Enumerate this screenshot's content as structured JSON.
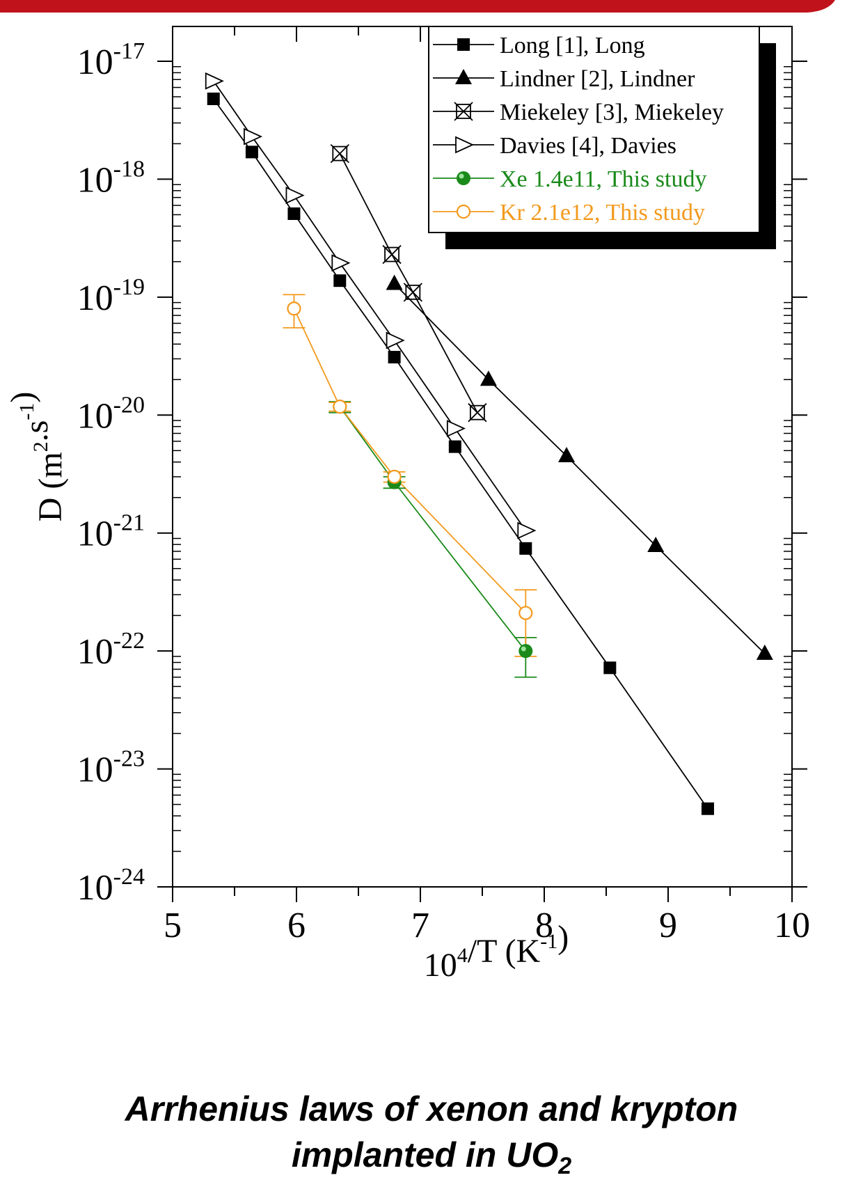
{
  "colors": {
    "banner": "#c0121b",
    "black": "#000000",
    "green": "#1a8a1a",
    "orange": "#f39a1e"
  },
  "caption": {
    "line1": "Arrhenius laws of xenon and krypton",
    "line2_prefix": "implanted in UO",
    "line2_sub": "2"
  },
  "chart_data": {
    "type": "scatter",
    "xlabel": "10^4/T (K^-1)",
    "ylabel": "D (m^2.s^-1)",
    "xlim": [
      5,
      10
    ],
    "ylim": [
      1e-24,
      1e-17
    ],
    "yscale": "log",
    "xticks": [
      "5",
      "6",
      "7",
      "8",
      "9",
      "10"
    ],
    "yticks": [
      "10^-24",
      "10^-23",
      "10^-22",
      "10^-21",
      "10^-20",
      "10^-19",
      "10^-18",
      "10^-17"
    ],
    "legend_position": "top-right",
    "series": [
      {
        "name": "Long [1], Long",
        "color": "#000000",
        "marker": "filled-square",
        "points": [
          [
            5.33,
            4.8e-18
          ],
          [
            5.64,
            1.7e-18
          ],
          [
            5.98,
            5.1e-19
          ],
          [
            6.35,
            1.38e-19
          ],
          [
            6.79,
            3.1e-20
          ],
          [
            7.28,
            5.4e-21
          ],
          [
            7.85,
            7.4e-22
          ],
          [
            8.53,
            7.2e-23
          ],
          [
            9.32,
            4.6e-24
          ]
        ]
      },
      {
        "name": "Lindner [2], Lindner",
        "color": "#000000",
        "marker": "filled-triangle",
        "points": [
          [
            6.79,
            1.3e-19
          ],
          [
            7.55,
            2e-20
          ],
          [
            8.18,
            4.5e-21
          ],
          [
            8.9,
            7.8e-22
          ],
          [
            9.78,
            9.5e-23
          ]
        ]
      },
      {
        "name": "Miekeley [3], Miekeley",
        "color": "#000000",
        "marker": "crossed-box",
        "points": [
          [
            6.35,
            1.65e-18
          ],
          [
            6.77,
            2.3e-19
          ],
          [
            6.94,
            1.1e-19
          ],
          [
            7.46,
            1.05e-20
          ]
        ]
      },
      {
        "name": "Davies [4], Davies",
        "color": "#000000",
        "marker": "open-triangle-right",
        "points": [
          [
            5.33,
            6.8e-18
          ],
          [
            5.64,
            2.3e-18
          ],
          [
            5.98,
            7.3e-19
          ],
          [
            6.35,
            1.95e-19
          ],
          [
            6.79,
            4.3e-20
          ],
          [
            7.28,
            7.7e-21
          ],
          [
            7.85,
            1.05e-21
          ]
        ]
      },
      {
        "name": "Xe 1.4e11, This study",
        "color": "#1a8a1a",
        "marker": "filled-circle",
        "points": [
          [
            6.35,
            1.18e-20
          ],
          [
            6.79,
            2.7e-21
          ],
          [
            7.85,
            1e-22
          ]
        ],
        "errors": [
          [
            1.05e-20,
            1.3e-20
          ],
          [
            2.4e-21,
            3e-21
          ],
          [
            6e-23,
            1.3e-22
          ]
        ]
      },
      {
        "name": "Kr 2.1e12, This study",
        "color": "#f39a1e",
        "marker": "open-circle",
        "points": [
          [
            5.98,
            8e-20
          ],
          [
            6.35,
            1.18e-20
          ],
          [
            6.79,
            3e-21
          ],
          [
            7.85,
            2.1e-22
          ]
        ],
        "errors": [
          [
            5.5e-20,
            1.05e-19
          ],
          [
            1.08e-20,
            1.28e-20
          ],
          [
            2.7e-21,
            3.3e-21
          ],
          [
            9e-23,
            3.3e-22
          ]
        ]
      }
    ]
  }
}
